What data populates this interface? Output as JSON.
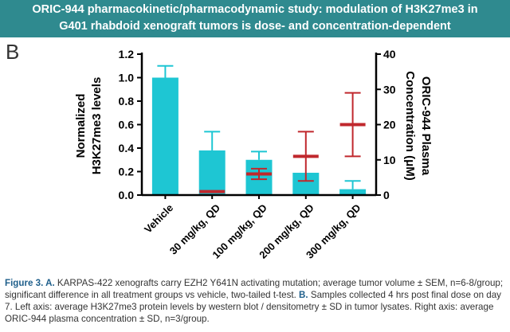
{
  "header": {
    "line1": "ORIC-944 pharmacokinetic/pharmacodynamic study: modulation of H3K27me3 in",
    "line2": "G401 rhabdoid xenograft tumors is dose- and concentration-dependent"
  },
  "panel_letter": "B",
  "chart_data": {
    "type": "bar",
    "categories": [
      "Vehicle",
      "30 mg/kg, QD",
      "100 mg/kg, QD",
      "200 mg/kg, QD",
      "300 mg/kg, QD"
    ],
    "left_axis": {
      "label_line1": "Normalized",
      "label_line2": "H3K27me3 levels",
      "ylim": [
        0,
        1.2
      ],
      "ticks": [
        "0.0",
        "0.2",
        "0.4",
        "0.6",
        "0.8",
        "1.0",
        "1.2"
      ]
    },
    "right_axis": {
      "label_line1": "ORIC-944 Plasma",
      "label_line2": "Concentration (μM)",
      "ylim": [
        0,
        40
      ],
      "ticks": [
        "0",
        "10",
        "20",
        "30",
        "40"
      ]
    },
    "series": [
      {
        "axis": "left",
        "style": "bar",
        "color": "#1ec6d3",
        "values": [
          1.0,
          0.38,
          0.3,
          0.19,
          0.05
        ],
        "errors": [
          0.1,
          0.16,
          0.07,
          0.0,
          0.07
        ]
      },
      {
        "axis": "right",
        "style": "marker",
        "color": "#c0282d",
        "values": [
          null,
          1.0,
          6.0,
          11.0,
          20.0
        ],
        "errors": [
          null,
          0.0,
          1.5,
          7.0,
          9.0
        ]
      }
    ],
    "grid": false
  },
  "caption": {
    "fig_label": "Figure 3. A.",
    "part_a": " KARPAS-422 xenografts carry EZH2 Y641N activating mutation; average tumor volume ± SEM, n=6-8/group; significant difference in all treatment groups vs vehicle, two-tailed t-test. ",
    "b_label": "B.",
    "part_b": " Samples collected 4 hrs post final dose on day 7. Left axis: average H3K27me3 protein levels by western blot / densitometry ± SD in tumor lysates. Right axis: average ORIC-944 plasma concentration ± SD, n=3/group."
  }
}
